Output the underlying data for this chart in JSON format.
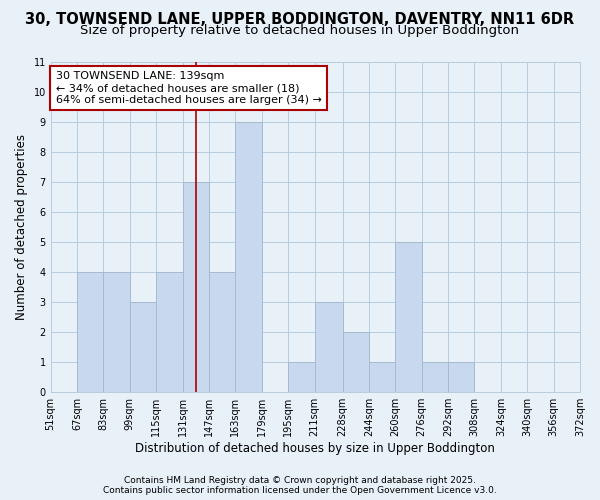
{
  "title1": "30, TOWNSEND LANE, UPPER BODDINGTON, DAVENTRY, NN11 6DR",
  "title2": "Size of property relative to detached houses in Upper Boddington",
  "xlabel": "Distribution of detached houses by size in Upper Boddington",
  "ylabel": "Number of detached properties",
  "bin_edges": [
    51,
    67,
    83,
    99,
    115,
    131,
    147,
    163,
    179,
    195,
    211,
    228,
    244,
    260,
    276,
    292,
    308,
    324,
    340,
    356,
    372
  ],
  "bin_labels": [
    "51sqm",
    "67sqm",
    "83sqm",
    "99sqm",
    "115sqm",
    "131sqm",
    "147sqm",
    "163sqm",
    "179sqm",
    "195sqm",
    "211sqm",
    "228sqm",
    "244sqm",
    "260sqm",
    "276sqm",
    "292sqm",
    "308sqm",
    "324sqm",
    "340sqm",
    "356sqm",
    "372sqm"
  ],
  "counts": [
    0,
    4,
    4,
    3,
    4,
    7,
    4,
    9,
    0,
    1,
    3,
    2,
    1,
    5,
    1,
    1,
    0,
    0,
    0,
    0
  ],
  "bar_color": "#c8d8ee",
  "bar_edge_color": "#ffffff",
  "grid_color": "#b8cce0",
  "property_line_x": 139,
  "property_line_color": "#aa0000",
  "annotation_title": "30 TOWNSEND LANE: 139sqm",
  "annotation_line1": "← 34% of detached houses are smaller (18)",
  "annotation_line2": "64% of semi-detached houses are larger (34) →",
  "annotation_box_color": "#ffffff",
  "annotation_box_edge": "#aa0000",
  "ylim": [
    0,
    11
  ],
  "yticks": [
    0,
    1,
    2,
    3,
    4,
    5,
    6,
    7,
    8,
    9,
    10,
    11
  ],
  "footer1": "Contains HM Land Registry data © Crown copyright and database right 2025.",
  "footer2": "Contains public sector information licensed under the Open Government Licence v3.0.",
  "background_color": "#e8f0f8",
  "title1_fontsize": 10.5,
  "title2_fontsize": 9.5,
  "axis_label_fontsize": 8.5,
  "tick_fontsize": 7,
  "annotation_fontsize": 8,
  "footer_fontsize": 6.5
}
